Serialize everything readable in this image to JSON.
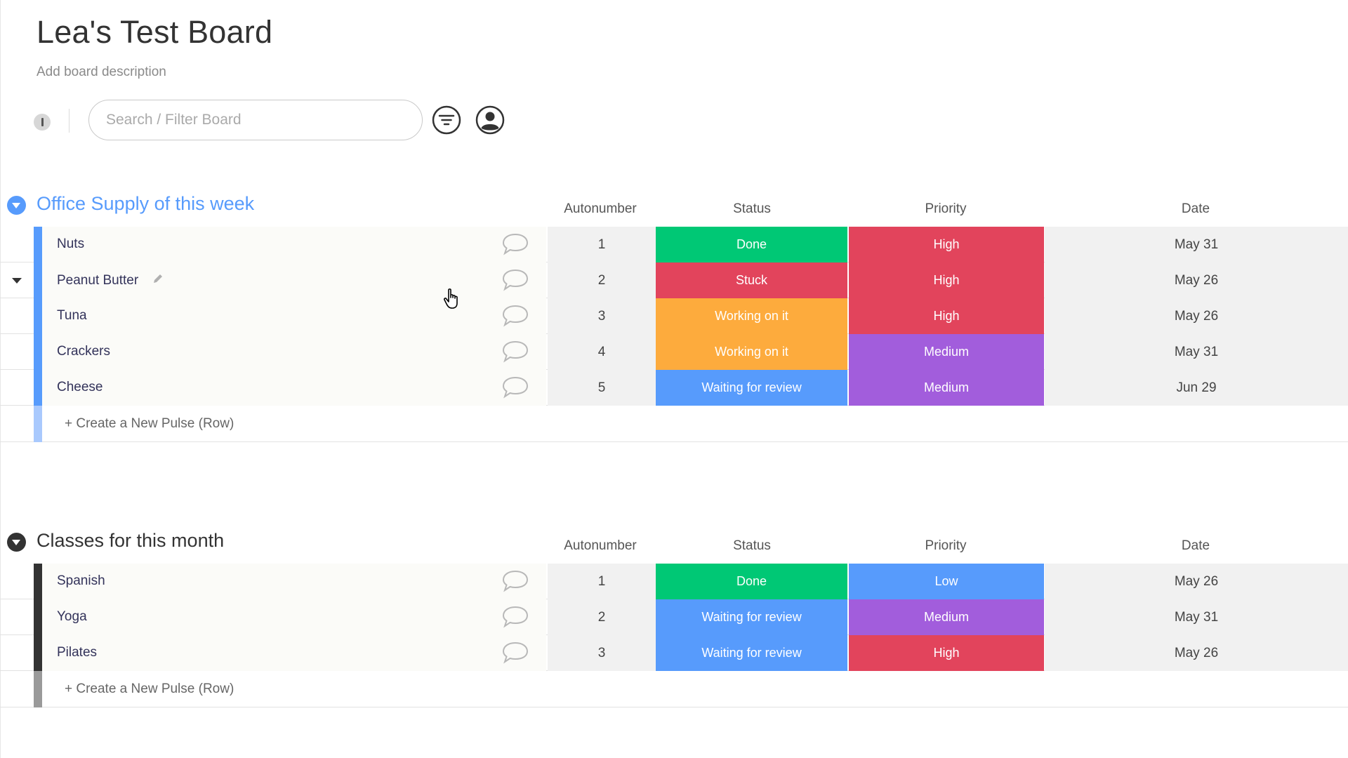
{
  "board": {
    "title": "Lea's Test Board",
    "description": "Add board description"
  },
  "toolbar": {
    "search_placeholder": "Search / Filter Board",
    "search_value": "",
    "filter_icon": "filter-icon",
    "person_icon": "person-icon"
  },
  "colors": {
    "done": "#00c875",
    "stuck": "#e2445c",
    "working": "#fdab3d",
    "review": "#579bfc",
    "high": "#e2445c",
    "medium": "#a25ddc",
    "low": "#579bfc",
    "group1": "#579bfc",
    "group2": "#333333"
  },
  "groups": [
    {
      "title": "Office Supply of this week",
      "columns": {
        "autonumber": "Autonumber",
        "status": "Status",
        "priority": "Priority",
        "date": "Date"
      },
      "rows": [
        {
          "name": "Nuts",
          "autonumber": "1",
          "status": "Done",
          "priority": "High",
          "date": "May 31"
        },
        {
          "name": "Peanut Butter",
          "autonumber": "2",
          "status": "Stuck",
          "priority": "High",
          "date": "May 26"
        },
        {
          "name": "Tuna",
          "autonumber": "3",
          "status": "Working on it",
          "priority": "High",
          "date": "May 26"
        },
        {
          "name": "Crackers",
          "autonumber": "4",
          "status": "Working on it",
          "priority": "Medium",
          "date": "May 31"
        },
        {
          "name": "Cheese",
          "autonumber": "5",
          "status": "Waiting for review",
          "priority": "Medium",
          "date": "Jun 29"
        }
      ],
      "add_label": "+ Create a New Pulse (Row)"
    },
    {
      "title": "Classes for this month",
      "columns": {
        "autonumber": "Autonumber",
        "status": "Status",
        "priority": "Priority",
        "date": "Date"
      },
      "rows": [
        {
          "name": "Spanish",
          "autonumber": "1",
          "status": "Done",
          "priority": "Low",
          "date": "May 26"
        },
        {
          "name": "Yoga",
          "autonumber": "2",
          "status": "Waiting for review",
          "priority": "Medium",
          "date": "May 31"
        },
        {
          "name": "Pilates",
          "autonumber": "3",
          "status": "Waiting for review",
          "priority": "High",
          "date": "May 26"
        }
      ],
      "add_label": "+ Create a New Pulse (Row)"
    }
  ]
}
